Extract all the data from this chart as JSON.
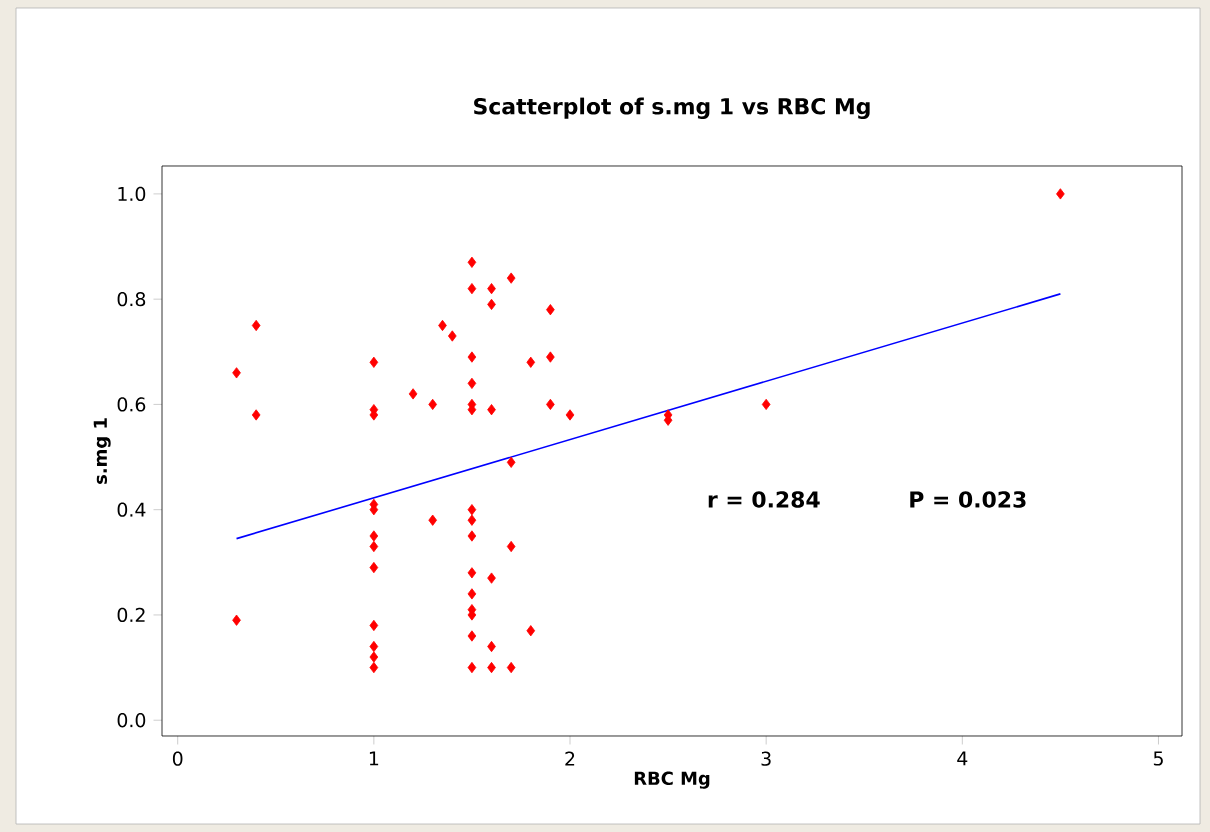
{
  "chart_data": {
    "type": "scatter",
    "title": "Scatterplot of s.mg 1 vs RBC Mg",
    "xlabel": "RBC Mg",
    "ylabel": "s.mg 1",
    "xlim": [
      -0.08,
      5.12
    ],
    "ylim": [
      -0.03,
      1.053
    ],
    "xticks": [
      0,
      1,
      2,
      3,
      4,
      5
    ],
    "yticks": [
      {
        "value": 0,
        "label": "0.0"
      },
      {
        "value": 0.2,
        "label": "0.2"
      },
      {
        "value": 0.4,
        "label": "0.4"
      },
      {
        "value": 0.6,
        "label": "0.6"
      },
      {
        "value": 0.8,
        "label": "0.8"
      },
      {
        "value": 1,
        "label": "1.0"
      }
    ],
    "marker": "diamond",
    "grid": false,
    "annotations": [
      "r = 0.284",
      "P = 0.023"
    ],
    "series": [
      {
        "color": "#ff0000",
        "x": [
          0.3,
          0.3,
          0.4,
          0.4,
          1,
          1,
          1,
          1,
          1,
          1,
          1,
          1,
          1,
          1,
          1,
          1,
          1.2,
          1.3,
          1.3,
          1.35,
          1.4,
          1.5,
          1.5,
          1.5,
          1.5,
          1.5,
          1.5,
          1.5,
          1.5,
          1.5,
          1.5,
          1.5,
          1.5,
          1.5,
          1.5,
          1.5,
          1.6,
          1.6,
          1.6,
          1.6,
          1.6,
          1.6,
          1.7,
          1.7,
          1.7,
          1.7,
          1.8,
          1.8,
          1.9,
          1.9,
          1.9,
          2.0,
          2.5,
          2.5,
          3,
          4.5
        ],
        "values": [
          0.66,
          0.19,
          0.75,
          0.58,
          0.68,
          0.59,
          0.58,
          0.41,
          0.4,
          0.35,
          0.33,
          0.29,
          0.18,
          0.14,
          0.12,
          0.1,
          0.62,
          0.6,
          0.38,
          0.75,
          0.73,
          0.87,
          0.82,
          0.69,
          0.64,
          0.6,
          0.59,
          0.4,
          0.38,
          0.35,
          0.28,
          0.24,
          0.21,
          0.2,
          0.16,
          0.1,
          0.82,
          0.79,
          0.59,
          0.27,
          0.14,
          0.1,
          0.84,
          0.49,
          0.33,
          0.1,
          0.68,
          0.17,
          0.78,
          0.69,
          0.6,
          0.58,
          0.58,
          0.57,
          0.6,
          1.0
        ]
      },
      {
        "type": "line",
        "marker": "none",
        "color": "#0000ff",
        "x": [
          0.3,
          4.5
        ],
        "values": [
          0.345,
          0.81
        ]
      }
    ]
  }
}
